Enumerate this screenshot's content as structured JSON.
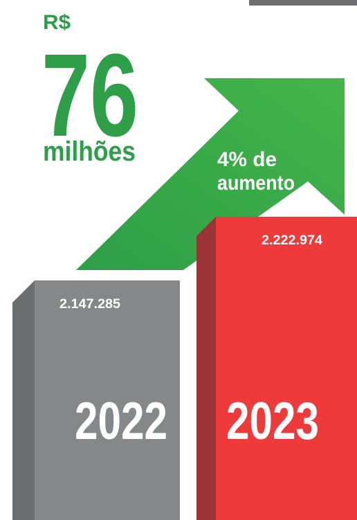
{
  "chart_data": {
    "type": "bar",
    "headline": {
      "currency": "R$",
      "amount": 76,
      "unit": "milhões"
    },
    "annotation": [
      "4% de",
      "aumento"
    ],
    "categories": [
      "2022",
      "2023"
    ],
    "values": [
      2147285,
      2222974
    ],
    "value_labels": [
      "2.147.285",
      "2.222.974"
    ],
    "colors": [
      "#85888a",
      "#ee3a3a"
    ],
    "side_colors": [
      "#6b6d70",
      "#9c3337"
    ],
    "arrow_color": "#2e9e48"
  }
}
